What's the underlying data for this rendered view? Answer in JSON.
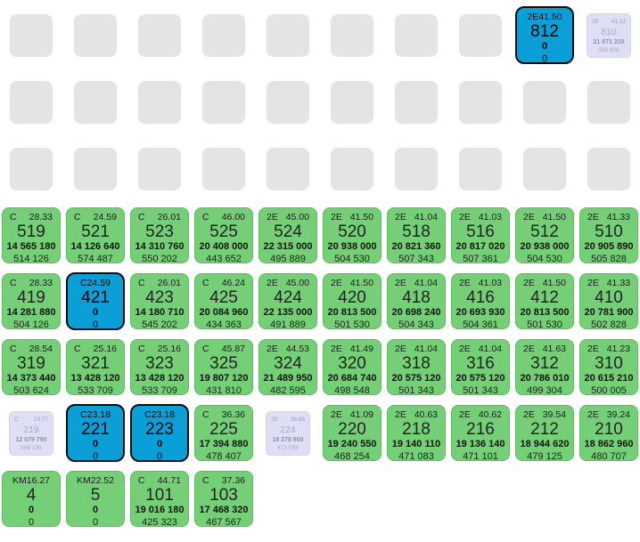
{
  "colors": {
    "background": "#ffffff",
    "empty_slot": "#e4e4e2",
    "available_tile": "#74cf77",
    "selected_tile": "#0a9fd7",
    "dimmed_tile": "#dedef4",
    "selected_border": "#0d0d0d"
  },
  "legend": {
    "tile_line_meaning": [
      "category and area",
      "cabin number",
      "primary metric",
      "secondary metric"
    ]
  },
  "rows": [
    {
      "name": "deck-row-8",
      "cells": [
        {
          "type": "empty"
        },
        {
          "type": "empty"
        },
        {
          "type": "empty"
        },
        {
          "type": "empty"
        },
        {
          "type": "empty"
        },
        {
          "type": "empty"
        },
        {
          "type": "empty"
        },
        {
          "type": "empty"
        },
        {
          "type": "selected",
          "header_align": "center",
          "code": "2E",
          "value": "41.50",
          "number": "812",
          "metric1": "0",
          "metric2": "0"
        },
        {
          "type": "dimmed",
          "header_align": "split",
          "code": "2E",
          "value": "41.33",
          "number": "810",
          "metric1": "21 071 210",
          "metric2": "509 828"
        }
      ]
    },
    {
      "name": "deck-row-7",
      "cells": [
        {
          "type": "empty"
        },
        {
          "type": "empty"
        },
        {
          "type": "empty"
        },
        {
          "type": "empty"
        },
        {
          "type": "empty"
        },
        {
          "type": "empty"
        },
        {
          "type": "empty"
        },
        {
          "type": "empty"
        },
        {
          "type": "empty"
        },
        {
          "type": "empty"
        }
      ]
    },
    {
      "name": "deck-row-6",
      "cells": [
        {
          "type": "empty"
        },
        {
          "type": "empty"
        },
        {
          "type": "empty"
        },
        {
          "type": "empty"
        },
        {
          "type": "empty"
        },
        {
          "type": "empty"
        },
        {
          "type": "empty"
        },
        {
          "type": "empty"
        },
        {
          "type": "empty"
        },
        {
          "type": "empty"
        }
      ]
    },
    {
      "name": "deck-row-5",
      "cells": [
        {
          "type": "normal",
          "header_align": "split",
          "code": "C",
          "value": "28.33",
          "number": "519",
          "metric1": "14 565 180",
          "metric2": "514 126"
        },
        {
          "type": "normal",
          "header_align": "split",
          "code": "C",
          "value": "24.59",
          "number": "521",
          "metric1": "14 126 640",
          "metric2": "574 487"
        },
        {
          "type": "normal",
          "header_align": "split",
          "code": "C",
          "value": "26.01",
          "number": "523",
          "metric1": "14 310 760",
          "metric2": "550 202"
        },
        {
          "type": "normal",
          "header_align": "split",
          "code": "C",
          "value": "46.00",
          "number": "525",
          "metric1": "20 408 000",
          "metric2": "443 652"
        },
        {
          "type": "normal",
          "header_align": "split",
          "code": "2E",
          "value": "45.00",
          "number": "524",
          "metric1": "22 315 000",
          "metric2": "495 889"
        },
        {
          "type": "normal",
          "header_align": "split",
          "code": "2E",
          "value": "41.50",
          "number": "520",
          "metric1": "20 938 000",
          "metric2": "504 530"
        },
        {
          "type": "normal",
          "header_align": "split",
          "code": "2E",
          "value": "41.04",
          "number": "518",
          "metric1": "20 821 360",
          "metric2": "507 343"
        },
        {
          "type": "normal",
          "header_align": "split",
          "code": "2E",
          "value": "41.03",
          "number": "516",
          "metric1": "20 817 020",
          "metric2": "507 361"
        },
        {
          "type": "normal",
          "header_align": "split",
          "code": "2E",
          "value": "41.50",
          "number": "512",
          "metric1": "20 938 000",
          "metric2": "504 530"
        },
        {
          "type": "normal",
          "header_align": "split",
          "code": "2E",
          "value": "41.33",
          "number": "510",
          "metric1": "20 905 890",
          "metric2": "505 828"
        }
      ]
    },
    {
      "name": "deck-row-4",
      "cells": [
        {
          "type": "normal",
          "header_align": "split",
          "code": "C",
          "value": "28.33",
          "number": "419",
          "metric1": "14 281 880",
          "metric2": "504 126"
        },
        {
          "type": "selected",
          "header_align": "center",
          "code": "C",
          "value": "24.59",
          "number": "421",
          "metric1": "0",
          "metric2": "0"
        },
        {
          "type": "normal",
          "header_align": "split",
          "code": "C",
          "value": "26.01",
          "number": "423",
          "metric1": "14 180 710",
          "metric2": "545 202"
        },
        {
          "type": "normal",
          "header_align": "split",
          "code": "C",
          "value": "46.24",
          "number": "425",
          "metric1": "20 084 960",
          "metric2": "434 363"
        },
        {
          "type": "normal",
          "header_align": "split",
          "code": "2E",
          "value": "45.00",
          "number": "424",
          "metric1": "22 135 000",
          "metric2": "491 889"
        },
        {
          "type": "normal",
          "header_align": "split",
          "code": "2E",
          "value": "41.50",
          "number": "420",
          "metric1": "20 813 500",
          "metric2": "501 530"
        },
        {
          "type": "normal",
          "header_align": "split",
          "code": "2E",
          "value": "41.04",
          "number": "418",
          "metric1": "20 698 240",
          "metric2": "504 343"
        },
        {
          "type": "normal",
          "header_align": "split",
          "code": "2E",
          "value": "41.03",
          "number": "416",
          "metric1": "20 693 930",
          "metric2": "504 361"
        },
        {
          "type": "normal",
          "header_align": "split",
          "code": "2E",
          "value": "41.50",
          "number": "412",
          "metric1": "20 813 500",
          "metric2": "501 530"
        },
        {
          "type": "normal",
          "header_align": "split",
          "code": "2E",
          "value": "41.33",
          "number": "410",
          "metric1": "20 781 900",
          "metric2": "502 828"
        }
      ]
    },
    {
      "name": "deck-row-3",
      "cells": [
        {
          "type": "normal",
          "header_align": "split",
          "code": "C",
          "value": "28.54",
          "number": "319",
          "metric1": "14 373 440",
          "metric2": "503 624"
        },
        {
          "type": "normal",
          "header_align": "split",
          "code": "C",
          "value": "25.16",
          "number": "321",
          "metric1": "13 428 120",
          "metric2": "533 709"
        },
        {
          "type": "normal",
          "header_align": "split",
          "code": "C",
          "value": "25.16",
          "number": "323",
          "metric1": "13 428 120",
          "metric2": "533 709"
        },
        {
          "type": "normal",
          "header_align": "split",
          "code": "C",
          "value": "45.87",
          "number": "325",
          "metric1": "19 807 120",
          "metric2": "431 810"
        },
        {
          "type": "normal",
          "header_align": "split",
          "code": "2E",
          "value": "44.53",
          "number": "324",
          "metric1": "21 489 950",
          "metric2": "482 595"
        },
        {
          "type": "normal",
          "header_align": "split",
          "code": "2E",
          "value": "41.49",
          "number": "320",
          "metric1": "20 684 740",
          "metric2": "498 548"
        },
        {
          "type": "normal",
          "header_align": "split",
          "code": "2E",
          "value": "41.04",
          "number": "318",
          "metric1": "20 575 120",
          "metric2": "501 343"
        },
        {
          "type": "normal",
          "header_align": "split",
          "code": "2E",
          "value": "41.04",
          "number": "316",
          "metric1": "20 575 120",
          "metric2": "501 343"
        },
        {
          "type": "normal",
          "header_align": "split",
          "code": "2E",
          "value": "41.63",
          "number": "312",
          "metric1": "20 786 010",
          "metric2": "499 304"
        },
        {
          "type": "normal",
          "header_align": "split",
          "code": "2E",
          "value": "41.23",
          "number": "310",
          "metric1": "20 615 210",
          "metric2": "500 005"
        }
      ]
    },
    {
      "name": "deck-row-2",
      "cells": [
        {
          "type": "dimmed",
          "header_align": "split",
          "code": "C",
          "value": "23.77",
          "number": "219",
          "metric1": "12 079 790",
          "metric2": "508 195"
        },
        {
          "type": "selected",
          "header_align": "center",
          "code": "C",
          "value": "23.18",
          "number": "221",
          "metric1": "0",
          "metric2": "0"
        },
        {
          "type": "selected",
          "header_align": "center",
          "code": "C",
          "value": "23.18",
          "number": "223",
          "metric1": "0",
          "metric2": "0"
        },
        {
          "type": "normal",
          "header_align": "split",
          "code": "C",
          "value": "36.36",
          "number": "225",
          "metric1": "17 394 880",
          "metric2": "478 407"
        },
        {
          "type": "dimmed",
          "header_align": "split",
          "code": "2E",
          "value": "38.68",
          "number": "224",
          "metric1": "18 278 600",
          "metric2": "472 559"
        },
        {
          "type": "normal",
          "header_align": "split",
          "code": "2E",
          "value": "41.09",
          "number": "220",
          "metric1": "19 240 550",
          "metric2": "468 254"
        },
        {
          "type": "normal",
          "header_align": "split",
          "code": "2E",
          "value": "40.63",
          "number": "218",
          "metric1": "19 140 110",
          "metric2": "471 083"
        },
        {
          "type": "normal",
          "header_align": "split",
          "code": "2E",
          "value": "40.62",
          "number": "216",
          "metric1": "19 136 140",
          "metric2": "471 101"
        },
        {
          "type": "normal",
          "header_align": "split",
          "code": "2E",
          "value": "39.54",
          "number": "212",
          "metric1": "18 944 620",
          "metric2": "479 125"
        },
        {
          "type": "normal",
          "header_align": "split",
          "code": "2E",
          "value": "39.24",
          "number": "210",
          "metric1": "18 862 960",
          "metric2": "480 707"
        }
      ]
    },
    {
      "name": "deck-row-1",
      "cells": [
        {
          "type": "normal",
          "header_align": "center",
          "code": "KM",
          "value": "16.27",
          "number": "4",
          "metric1": "0",
          "metric2": "0"
        },
        {
          "type": "normal",
          "header_align": "center",
          "code": "KM",
          "value": "22.52",
          "number": "5",
          "metric1": "0",
          "metric2": "0"
        },
        {
          "type": "normal",
          "header_align": "split",
          "code": "C",
          "value": "44.71",
          "number": "101",
          "metric1": "19 016 180",
          "metric2": "425 323"
        },
        {
          "type": "normal",
          "header_align": "split",
          "code": "C",
          "value": "37.36",
          "number": "103",
          "metric1": "17 468 320",
          "metric2": "467 567"
        }
      ]
    }
  ]
}
